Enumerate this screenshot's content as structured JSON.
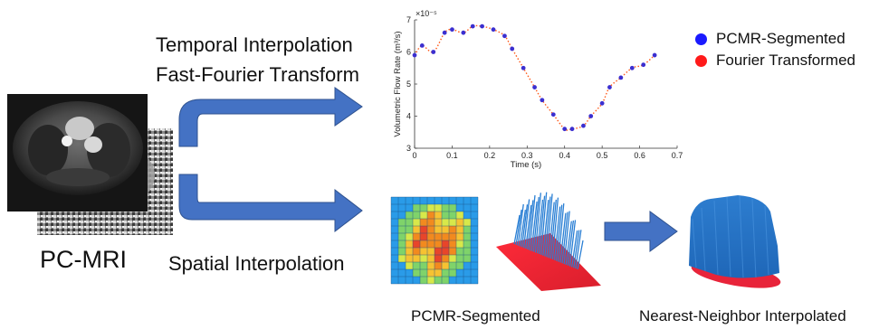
{
  "labels": {
    "temporal_interpolation": "Temporal Interpolation",
    "fft": "Fast-Fourier Transform",
    "pc_mri": "PC-MRI",
    "spatial_interpolation": "Spatial Interpolation",
    "pcmr_segmented_caption": "PCMR-Segmented",
    "nn_interpolated_caption": "Nearest-Neighbor Interpolated"
  },
  "chart_data": {
    "type": "scatter",
    "xlabel": "Time (s)",
    "ylabel": "Volumetric Flow Rate (m³/s)",
    "y_exponent": "×10⁻⁵",
    "xlim": [
      0,
      0.7
    ],
    "ylim": [
      3,
      7
    ],
    "x_ticks": [
      "0",
      "0.1",
      "0.2",
      "0.3",
      "0.4",
      "0.5",
      "0.6",
      "0.7"
    ],
    "y_ticks": [
      "3",
      "4",
      "5",
      "6",
      "7"
    ],
    "legend": [
      {
        "name": "PCMR-Segmented",
        "color": "#1a1aff"
      },
      {
        "name": "Fourier Transformed",
        "color": "#ff1a1a"
      }
    ],
    "series": [
      {
        "name": "PCMR-Segmented",
        "style": "points",
        "color": "#3b2fd0",
        "x": [
          0.0,
          0.02,
          0.05,
          0.08,
          0.1,
          0.13,
          0.155,
          0.18,
          0.21,
          0.24,
          0.26,
          0.29,
          0.32,
          0.34,
          0.37,
          0.4,
          0.42,
          0.45,
          0.47,
          0.5,
          0.52,
          0.55,
          0.58,
          0.61,
          0.64
        ],
        "y": [
          5.9,
          6.2,
          6.0,
          6.6,
          6.7,
          6.6,
          6.8,
          6.8,
          6.7,
          6.5,
          6.1,
          5.5,
          4.9,
          4.5,
          4.05,
          3.6,
          3.6,
          3.7,
          4.0,
          4.4,
          4.9,
          5.2,
          5.5,
          5.6,
          5.9
        ]
      },
      {
        "name": "Fourier Transformed",
        "style": "dotted-line",
        "color": "#ff5a1a",
        "x": [
          0.0,
          0.02,
          0.05,
          0.08,
          0.1,
          0.13,
          0.155,
          0.18,
          0.21,
          0.24,
          0.26,
          0.29,
          0.32,
          0.34,
          0.37,
          0.4,
          0.42,
          0.45,
          0.47,
          0.5,
          0.52,
          0.55,
          0.58,
          0.61,
          0.64
        ],
        "y": [
          5.9,
          6.2,
          6.0,
          6.6,
          6.7,
          6.6,
          6.8,
          6.8,
          6.7,
          6.5,
          6.1,
          5.5,
          4.9,
          4.5,
          4.05,
          3.6,
          3.6,
          3.7,
          4.0,
          4.4,
          4.9,
          5.2,
          5.5,
          5.6,
          5.9
        ]
      }
    ]
  }
}
